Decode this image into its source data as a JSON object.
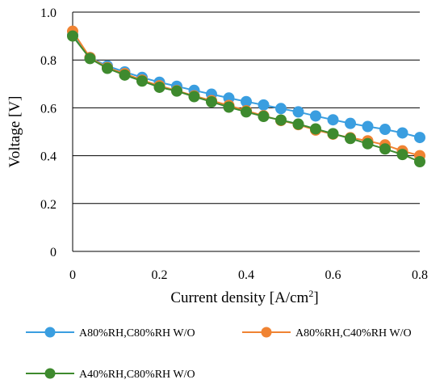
{
  "chart_data": {
    "type": "line",
    "title": "",
    "xlabel": "Current density [A/cm",
    "xlabel_sup": "2",
    "xlabel_end": "]",
    "ylabel": "Voltage [V]",
    "xlim": [
      0,
      0.8
    ],
    "ylim": [
      0,
      1.0
    ],
    "x_ticks": [
      "0",
      "0.2",
      "0.4",
      "0.6",
      "0.8"
    ],
    "y_ticks": [
      "0",
      "0.2",
      "0.4",
      "0.6",
      "0.8",
      "1.0"
    ],
    "grid": "horizontal",
    "legend_placement": "bottom",
    "x": [
      0,
      0.04,
      0.08,
      0.12,
      0.16,
      0.2,
      0.24,
      0.28,
      0.32,
      0.36,
      0.4,
      0.44,
      0.48,
      0.52,
      0.56,
      0.6,
      0.64,
      0.68,
      0.72,
      0.76,
      0.8
    ],
    "series": [
      {
        "name": "A80%RH,C80%RH W/O",
        "color": "#3a9ee0",
        "values": [
          0.905,
          0.81,
          0.775,
          0.75,
          0.727,
          0.707,
          0.69,
          0.673,
          0.657,
          0.641,
          0.626,
          0.612,
          0.597,
          0.583,
          0.566,
          0.55,
          0.535,
          0.522,
          0.51,
          0.495,
          0.476
        ]
      },
      {
        "name": "A80%RH,C40%RH W/O",
        "color": "#f08332",
        "values": [
          0.92,
          0.81,
          0.768,
          0.743,
          0.716,
          0.692,
          0.672,
          0.65,
          0.63,
          0.61,
          0.588,
          0.567,
          0.547,
          0.53,
          0.507,
          0.49,
          0.475,
          0.462,
          0.445,
          0.42,
          0.4
        ]
      },
      {
        "name": "A40%RH,C80%RH W/O",
        "color": "#3e8a2e",
        "values": [
          0.9,
          0.806,
          0.765,
          0.737,
          0.712,
          0.686,
          0.67,
          0.647,
          0.625,
          0.603,
          0.583,
          0.564,
          0.549,
          0.532,
          0.512,
          0.492,
          0.472,
          0.45,
          0.428,
          0.405,
          0.375
        ]
      }
    ]
  }
}
